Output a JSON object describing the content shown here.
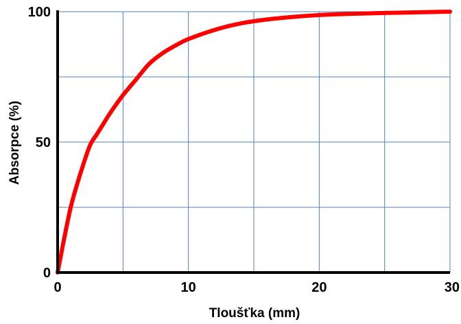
{
  "chart_data": {
    "type": "line",
    "title": "",
    "xlabel": "Tloušťka (mm)",
    "ylabel": "Absorpce (%)",
    "xlim": [
      0,
      30
    ],
    "ylim": [
      0,
      100
    ],
    "x_ticks": [
      0,
      10,
      20,
      30
    ],
    "y_ticks": [
      0,
      50,
      100
    ],
    "x_tick_labels": [
      "0",
      "10",
      "20",
      "30"
    ],
    "y_tick_labels": [
      "0",
      "50",
      "100"
    ],
    "x_grid": [
      0,
      5,
      10,
      15,
      20,
      25,
      30
    ],
    "y_grid": [
      0,
      25,
      50,
      75,
      100
    ],
    "grid": true,
    "legend": "none",
    "series": [
      {
        "color": "#ff0000",
        "x": [
          0,
          0.5,
          1,
          1.5,
          2,
          2.5,
          3,
          3.5,
          4,
          5,
          6,
          7,
          8,
          9,
          10,
          12,
          14,
          16,
          18,
          20,
          22,
          25,
          28,
          30
        ],
        "y": [
          0,
          13,
          25,
          34,
          42,
          49,
          53,
          57,
          61,
          68,
          74,
          80,
          84,
          87,
          89.5,
          93,
          95.5,
          97,
          98,
          98.7,
          99.1,
          99.5,
          99.8,
          100
        ]
      }
    ]
  }
}
